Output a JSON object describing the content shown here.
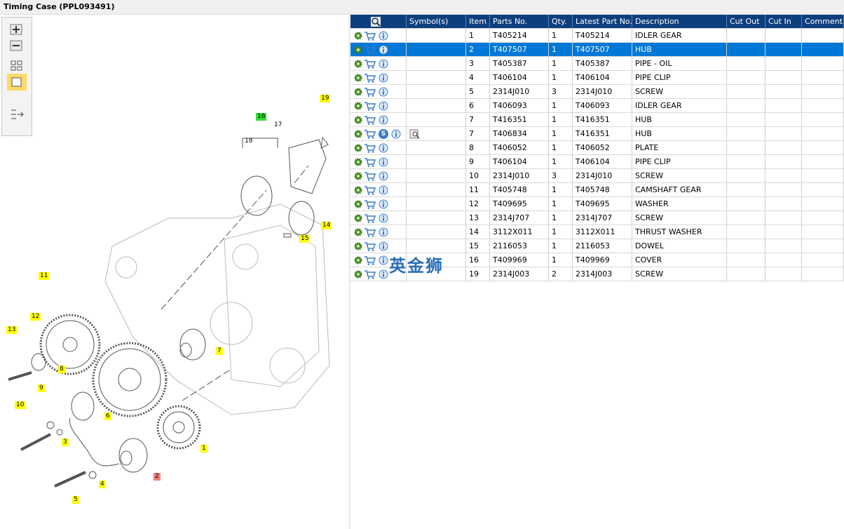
{
  "header": {
    "title": "Timing Case (PPL093491)"
  },
  "diagram": {
    "callouts": [
      {
        "label": "19",
        "highlight": "yellow"
      },
      {
        "label": "16",
        "highlight": "green"
      },
      {
        "label": "17",
        "highlight": "none"
      },
      {
        "label": "18",
        "highlight": "none"
      },
      {
        "label": "14",
        "highlight": "yellow"
      },
      {
        "label": "15",
        "highlight": "yellow"
      },
      {
        "label": "11",
        "highlight": "yellow"
      },
      {
        "label": "12",
        "highlight": "yellow"
      },
      {
        "label": "13",
        "highlight": "yellow"
      },
      {
        "label": "7",
        "highlight": "yellow"
      },
      {
        "label": "8",
        "highlight": "yellow"
      },
      {
        "label": "9",
        "highlight": "yellow"
      },
      {
        "label": "10",
        "highlight": "yellow"
      },
      {
        "label": "6",
        "highlight": "yellow"
      },
      {
        "label": "3",
        "highlight": "yellow"
      },
      {
        "label": "1",
        "highlight": "yellow"
      },
      {
        "label": "2",
        "highlight": "red"
      },
      {
        "label": "4",
        "highlight": "yellow"
      },
      {
        "label": "5",
        "highlight": "yellow"
      }
    ]
  },
  "table": {
    "headers": [
      "Symbol(s)",
      "Item",
      "Parts No.",
      "Qty.",
      "Latest Part No.",
      "Description",
      "Cut Out",
      "Cut In",
      "Comment"
    ],
    "rows": [
      {
        "item": "1",
        "parts_no": "T405214",
        "qty": "1",
        "latest": "T405214",
        "description": "IDLER GEAR"
      },
      {
        "item": "2",
        "parts_no": "T407507",
        "qty": "1",
        "latest": "T407507",
        "description": "HUB",
        "selected": true
      },
      {
        "item": "3",
        "parts_no": "T405387",
        "qty": "1",
        "latest": "T405387",
        "description": "PIPE - OIL"
      },
      {
        "item": "4",
        "parts_no": "T406104",
        "qty": "1",
        "latest": "T406104",
        "description": "PIPE CLIP"
      },
      {
        "item": "5",
        "parts_no": "2314J010",
        "qty": "3",
        "latest": "2314J010",
        "description": "SCREW"
      },
      {
        "item": "6",
        "parts_no": "T406093",
        "qty": "1",
        "latest": "T406093",
        "description": "IDLER GEAR"
      },
      {
        "item": "7",
        "parts_no": "T416351",
        "qty": "1",
        "latest": "T416351",
        "description": "HUB"
      },
      {
        "item": "7",
        "parts_no": "T406834",
        "qty": "1",
        "latest": "T416351",
        "description": "HUB",
        "symbol": "S"
      },
      {
        "item": "8",
        "parts_no": "T406052",
        "qty": "1",
        "latest": "T406052",
        "description": "PLATE"
      },
      {
        "item": "9",
        "parts_no": "T406104",
        "qty": "1",
        "latest": "T406104",
        "description": "PIPE CLIP"
      },
      {
        "item": "10",
        "parts_no": "2314J010",
        "qty": "3",
        "latest": "2314J010",
        "description": "SCREW"
      },
      {
        "item": "11",
        "parts_no": "T405748",
        "qty": "1",
        "latest": "T405748",
        "description": "CAMSHAFT GEAR"
      },
      {
        "item": "12",
        "parts_no": "T409695",
        "qty": "1",
        "latest": "T409695",
        "description": "WASHER"
      },
      {
        "item": "13",
        "parts_no": "2314J707",
        "qty": "1",
        "latest": "2314J707",
        "description": "SCREW"
      },
      {
        "item": "14",
        "parts_no": "3112X011",
        "qty": "1",
        "latest": "3112X011",
        "description": "THRUST WASHER"
      },
      {
        "item": "15",
        "parts_no": "2116053",
        "qty": "1",
        "latest": "2116053",
        "description": "DOWEL"
      },
      {
        "item": "16",
        "parts_no": "T409969",
        "qty": "1",
        "latest": "T409969",
        "description": "COVER"
      },
      {
        "item": "19",
        "parts_no": "2314J003",
        "qty": "2",
        "latest": "2314J003",
        "description": "SCREW"
      }
    ]
  },
  "watermark": "英金狮"
}
